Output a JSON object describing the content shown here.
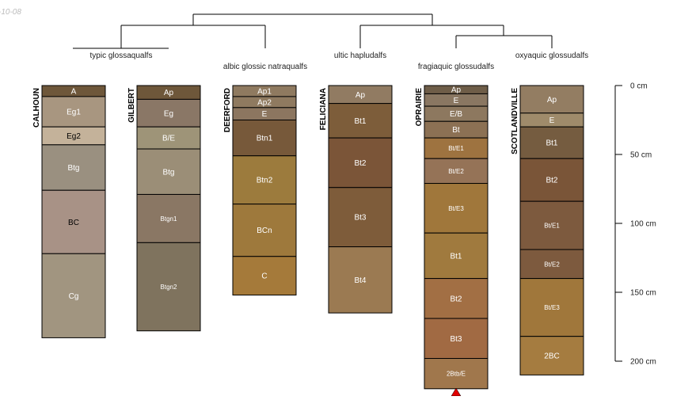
{
  "header": {
    "date_fragment": "-10-08"
  },
  "taxa": [
    {
      "id": "t1",
      "label": "typic glossaqualfs"
    },
    {
      "id": "t2",
      "label": "albic glossic natraqualfs"
    },
    {
      "id": "t3",
      "label": "ultic hapludalfs"
    },
    {
      "id": "t4",
      "label": "fragiaquic glossudalfs"
    },
    {
      "id": "t5",
      "label": "oxyaquic glossudalfs"
    }
  ],
  "scale": {
    "unit": "cm",
    "ticks": [
      {
        "depth": 0,
        "label": "0 cm"
      },
      {
        "depth": 50,
        "label": "50 cm"
      },
      {
        "depth": 100,
        "label": "100 cm"
      },
      {
        "depth": 150,
        "label": "150 cm"
      },
      {
        "depth": 200,
        "label": "200 cm"
      }
    ]
  },
  "profiles": [
    {
      "name": "CALHOUN",
      "bottom_depth": 183,
      "horizons": [
        {
          "name": "A",
          "top": 0,
          "bottom": 8,
          "color": "#6e573a",
          "text_color": "#ffffff"
        },
        {
          "name": "Eg1",
          "top": 8,
          "bottom": 30,
          "color": "#a89680",
          "text_color": "#ffffff"
        },
        {
          "name": "Eg2",
          "top": 30,
          "bottom": 43,
          "color": "#c4b29a",
          "text_color": "#000000"
        },
        {
          "name": "Btg",
          "top": 43,
          "bottom": 76,
          "color": "#9a9080",
          "text_color": "#ffffff"
        },
        {
          "name": "BC",
          "top": 76,
          "bottom": 122,
          "color": "#a89286",
          "text_color": "#000000"
        },
        {
          "name": "Cg",
          "top": 122,
          "bottom": 183,
          "color": "#a19580",
          "text_color": "#ffffff"
        }
      ]
    },
    {
      "name": "GILBERT",
      "bottom_depth": 178,
      "horizons": [
        {
          "name": "Ap",
          "top": 0,
          "bottom": 10,
          "color": "#6e573a",
          "text_color": "#ffffff"
        },
        {
          "name": "Eg",
          "top": 10,
          "bottom": 30,
          "color": "#8a7766",
          "text_color": "#ffffff"
        },
        {
          "name": "B/E",
          "top": 30,
          "bottom": 46,
          "color": "#9e9478",
          "text_color": "#ffffff"
        },
        {
          "name": "Btg",
          "top": 46,
          "bottom": 79,
          "color": "#9b8e77",
          "text_color": "#ffffff"
        },
        {
          "name": "Btgn1",
          "top": 79,
          "bottom": 114,
          "color": "#8a7764",
          "text_color": "#ffffff"
        },
        {
          "name": "Btgn2",
          "top": 114,
          "bottom": 178,
          "color": "#7f735e",
          "text_color": "#ffffff"
        }
      ]
    },
    {
      "name": "DEERFORD",
      "bottom_depth": 152,
      "horizons": [
        {
          "name": "Ap1",
          "top": 0,
          "bottom": 8,
          "color": "#8f7a60",
          "text_color": "#ffffff"
        },
        {
          "name": "Ap2",
          "top": 8,
          "bottom": 16,
          "color": "#8f7a60",
          "text_color": "#ffffff"
        },
        {
          "name": "E",
          "top": 16,
          "bottom": 25,
          "color": "#8c7660",
          "text_color": "#ffffff"
        },
        {
          "name": "Btn1",
          "top": 25,
          "bottom": 51,
          "color": "#77593a",
          "text_color": "#ffffff"
        },
        {
          "name": "Btn2",
          "top": 51,
          "bottom": 86,
          "color": "#9c7b3d",
          "text_color": "#ffffff"
        },
        {
          "name": "BCn",
          "top": 86,
          "bottom": 124,
          "color": "#9e793c",
          "text_color": "#ffffff"
        },
        {
          "name": "C",
          "top": 124,
          "bottom": 152,
          "color": "#a57a3a",
          "text_color": "#ffffff"
        }
      ]
    },
    {
      "name": "FELICIANA",
      "bottom_depth": 165,
      "horizons": [
        {
          "name": "Ap",
          "top": 0,
          "bottom": 13,
          "color": "#917b62",
          "text_color": "#ffffff"
        },
        {
          "name": "Bt1",
          "top": 13,
          "bottom": 38,
          "color": "#7d5d3a",
          "text_color": "#ffffff"
        },
        {
          "name": "Bt2",
          "top": 38,
          "bottom": 74,
          "color": "#7b5538",
          "text_color": "#ffffff"
        },
        {
          "name": "Bt3",
          "top": 74,
          "bottom": 117,
          "color": "#7e5c3a",
          "text_color": "#ffffff"
        },
        {
          "name": "Bt4",
          "top": 117,
          "bottom": 165,
          "color": "#9b7a52",
          "text_color": "#ffffff"
        }
      ]
    },
    {
      "name": "OPRAIRIE",
      "bottom_depth": 220,
      "horizons": [
        {
          "name": "Ap",
          "top": 0,
          "bottom": 6,
          "color": "#6e5d48",
          "text_color": "#ffffff"
        },
        {
          "name": "E",
          "top": 6,
          "bottom": 15,
          "color": "#8a7762",
          "text_color": "#ffffff"
        },
        {
          "name": "E/B",
          "top": 15,
          "bottom": 26,
          "color": "#8d785f",
          "text_color": "#ffffff"
        },
        {
          "name": "Bt",
          "top": 26,
          "bottom": 38,
          "color": "#8c7154",
          "text_color": "#ffffff"
        },
        {
          "name": "Bt/E1",
          "top": 38,
          "bottom": 53,
          "color": "#9e7340",
          "text_color": "#ffffff"
        },
        {
          "name": "Bt/E2",
          "top": 53,
          "bottom": 71,
          "color": "#957357",
          "text_color": "#ffffff"
        },
        {
          "name": "Bt/E3",
          "top": 71,
          "bottom": 107,
          "color": "#a0773b",
          "text_color": "#ffffff"
        },
        {
          "name": "Bt1",
          "top": 107,
          "bottom": 140,
          "color": "#a07a3e",
          "text_color": "#ffffff"
        },
        {
          "name": "Bt2",
          "top": 140,
          "bottom": 169,
          "color": "#a26f44",
          "text_color": "#ffffff"
        },
        {
          "name": "Bt3",
          "top": 169,
          "bottom": 198,
          "color": "#a16a43",
          "text_color": "#ffffff"
        },
        {
          "name": "2Btb/E",
          "top": 198,
          "bottom": 220,
          "color": "#a0774c",
          "text_color": "#ffffff"
        }
      ]
    },
    {
      "name": "SCOTLANDVILLE",
      "bottom_depth": 210,
      "horizons": [
        {
          "name": "Ap",
          "top": 0,
          "bottom": 20,
          "color": "#937d62",
          "text_color": "#ffffff"
        },
        {
          "name": "E",
          "top": 20,
          "bottom": 30,
          "color": "#9f8b6b",
          "text_color": "#ffffff"
        },
        {
          "name": "Bt1",
          "top": 30,
          "bottom": 53,
          "color": "#755c40",
          "text_color": "#ffffff"
        },
        {
          "name": "Bt2",
          "top": 53,
          "bottom": 84,
          "color": "#7a5538",
          "text_color": "#ffffff"
        },
        {
          "name": "Bt/E1",
          "top": 84,
          "bottom": 119,
          "color": "#7d5a3e",
          "text_color": "#ffffff"
        },
        {
          "name": "Bt/E2",
          "top": 119,
          "bottom": 140,
          "color": "#7d5a3e",
          "text_color": "#ffffff"
        },
        {
          "name": "Bt/E3",
          "top": 140,
          "bottom": 182,
          "color": "#a0773b",
          "text_color": "#ffffff"
        },
        {
          "name": "2BC",
          "top": 182,
          "bottom": 210,
          "color": "#a57c40",
          "text_color": "#ffffff"
        }
      ]
    }
  ],
  "colors": {
    "outline": "#000000",
    "tree": "#000000",
    "truncation_marker": "#e00000"
  }
}
